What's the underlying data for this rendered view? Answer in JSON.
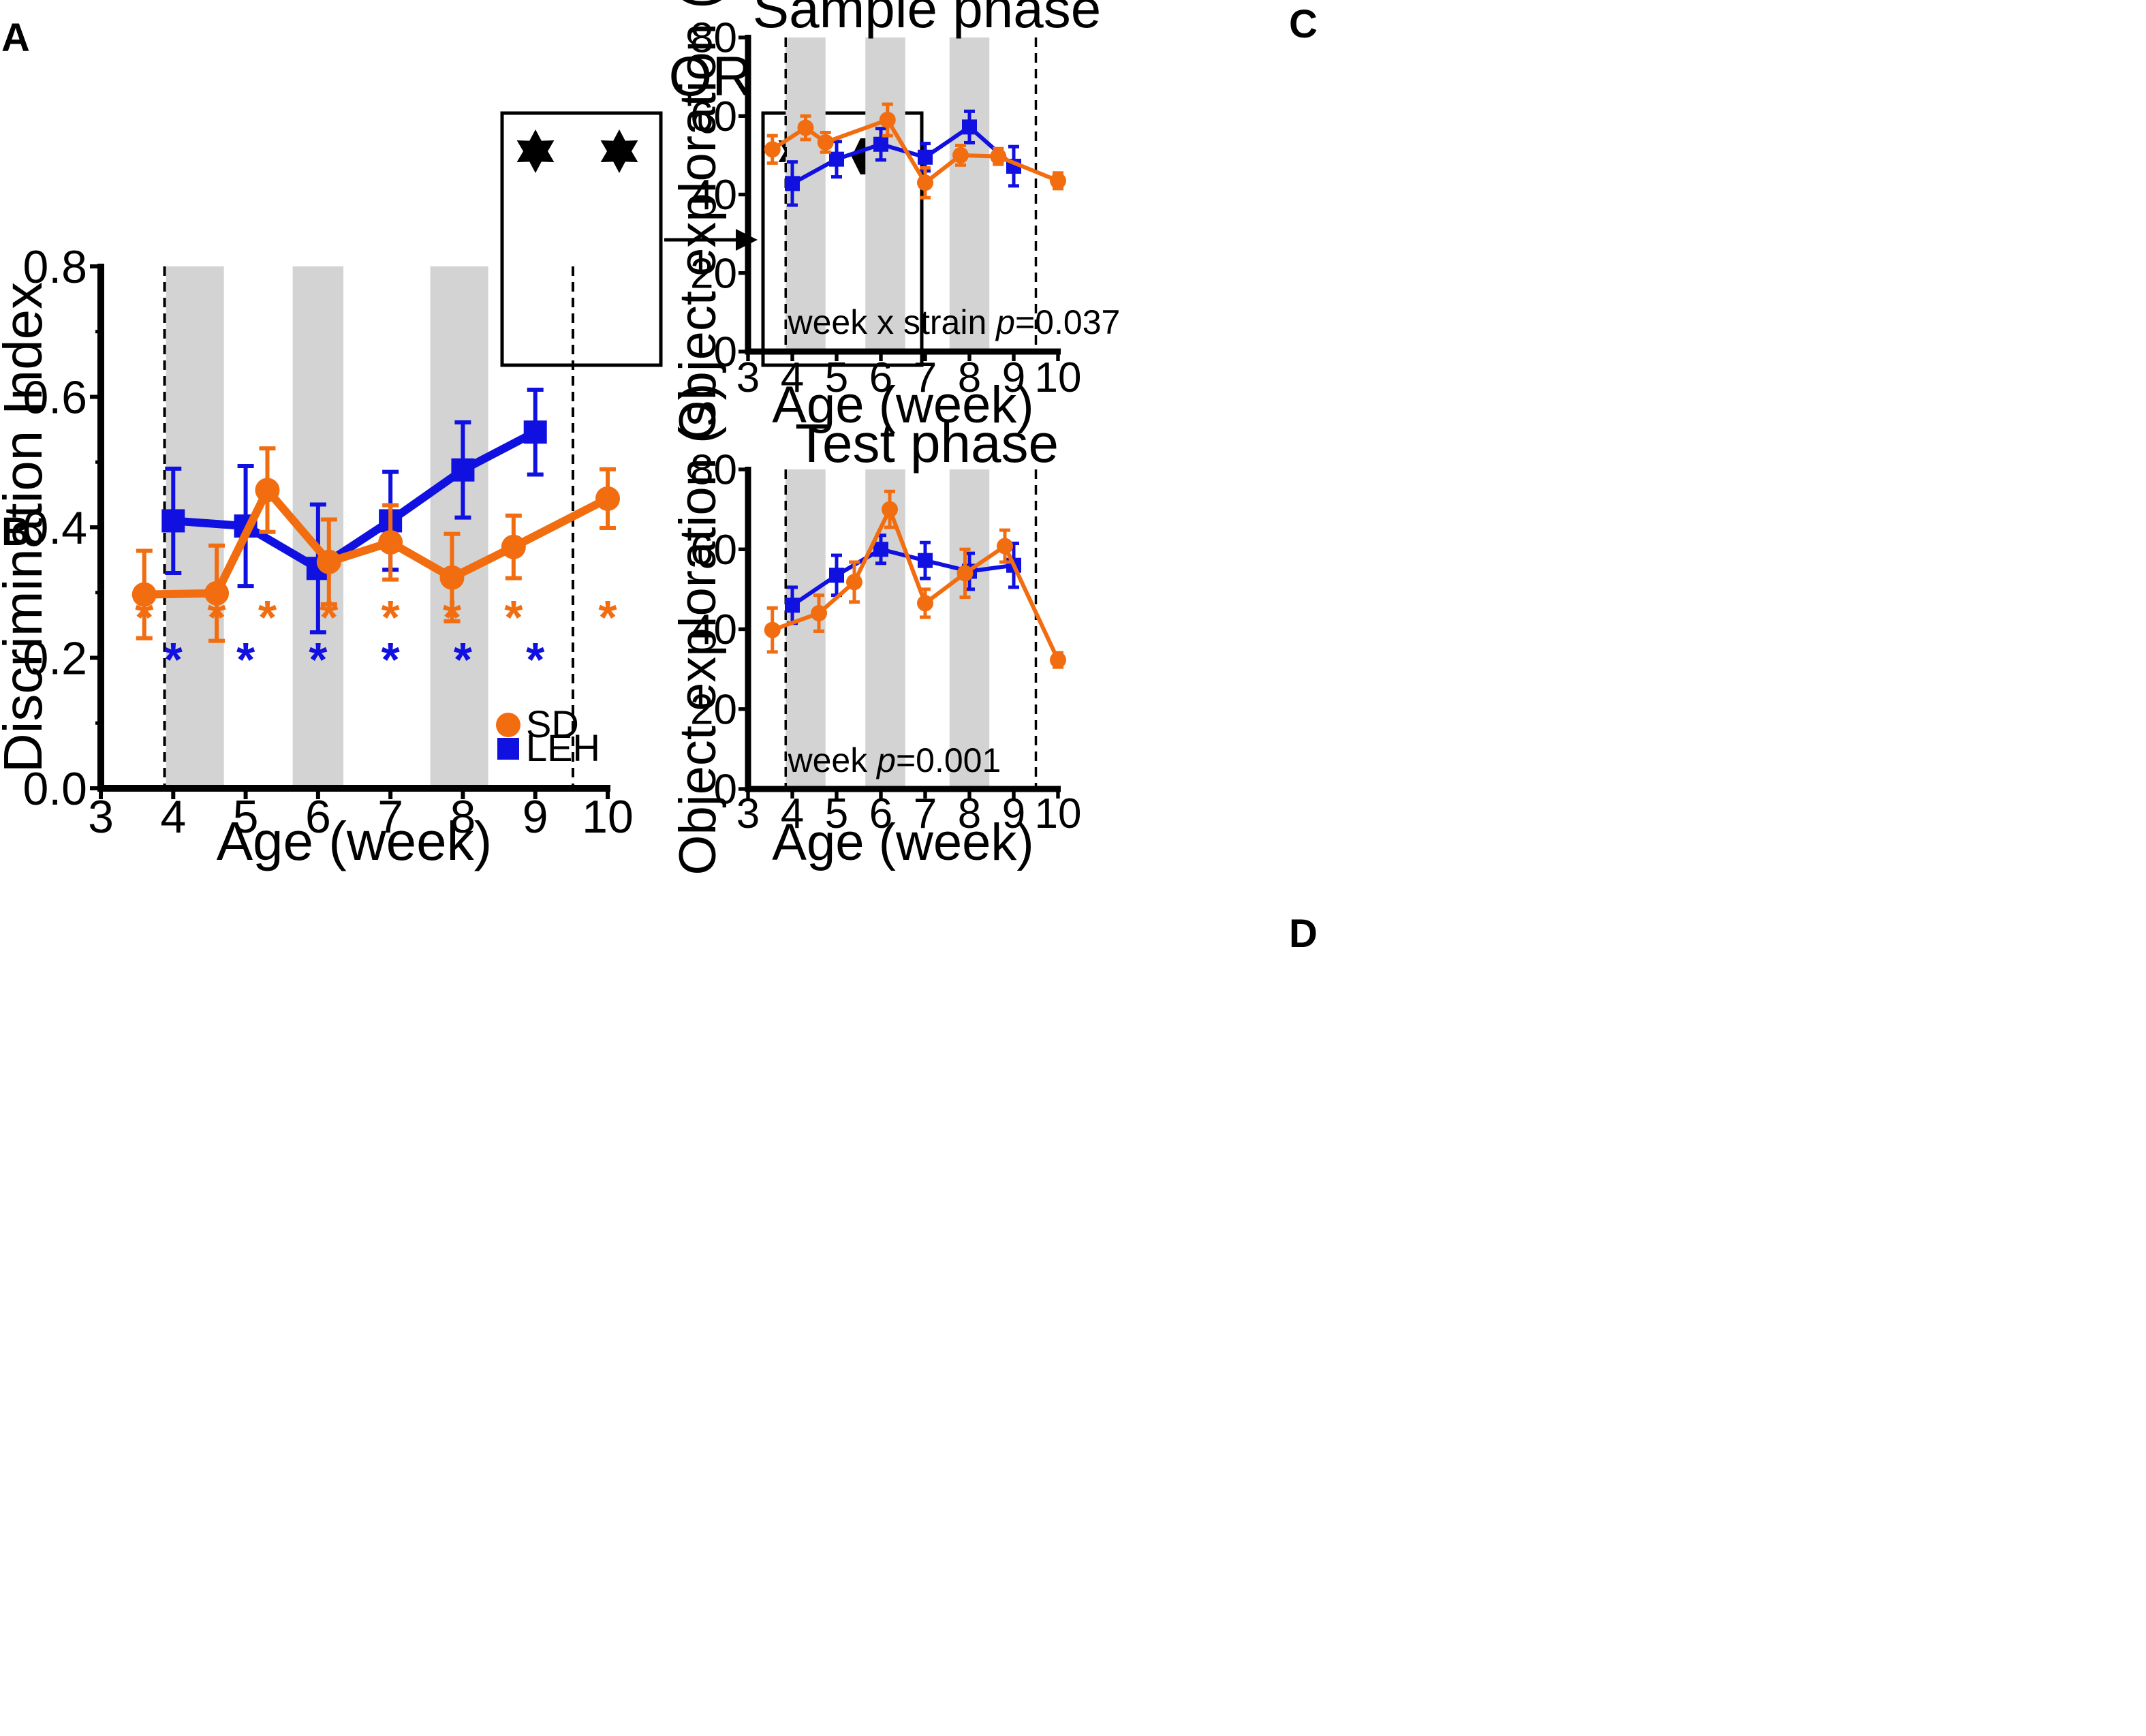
{
  "colors": {
    "sd": "#f26c10",
    "leh": "#1010e0",
    "shade": "#d3d3d3",
    "axis": "#000000"
  },
  "panel_labels": {
    "a": "A",
    "b": "B",
    "c": "C",
    "d": "D"
  },
  "panel_a": {
    "label": "OR"
  },
  "chart_data": [
    {
      "panel": "B",
      "type": "line",
      "title": "",
      "xlabel": "Age (week)",
      "ylabel": "Discrimination Index",
      "xlim": [
        3,
        10
      ],
      "ylim": [
        0,
        0.8
      ],
      "xticks": [
        3,
        4,
        5,
        6,
        7,
        8,
        9,
        10
      ],
      "xtick_labels": [
        "3",
        "4",
        "5",
        "6",
        "7",
        "8",
        "9",
        "10"
      ],
      "yticks": [
        0,
        0.2,
        0.4,
        0.6,
        0.8
      ],
      "ytick_labels": [
        "0.0",
        "0.2",
        "0.4",
        "0.6",
        "0.8"
      ],
      "shaded_x": [
        [
          3.9,
          4.7
        ],
        [
          5.65,
          6.35
        ],
        [
          7.55,
          8.35
        ]
      ],
      "dashed_x": [
        3.88,
        9.52
      ],
      "legend": [
        "SD",
        "LEH"
      ],
      "legend_position": "bottom-right",
      "series": [
        {
          "name": "SD",
          "marker": "circle",
          "x": [
            3.6,
            4.6,
            5.3,
            6.15,
            7.0,
            7.85,
            8.7,
            10.0
          ],
          "y": [
            0.297,
            0.299,
            0.457,
            0.347,
            0.377,
            0.323,
            0.37,
            0.444
          ],
          "err": [
            0.067,
            0.073,
            0.064,
            0.065,
            0.057,
            0.067,
            0.048,
            0.045
          ]
        },
        {
          "name": "LEH",
          "marker": "square",
          "x": [
            4.0,
            5.0,
            6.0,
            7.0,
            8.0,
            9.0
          ],
          "y": [
            0.41,
            0.402,
            0.337,
            0.41,
            0.488,
            0.546
          ],
          "err": [
            0.08,
            0.092,
            0.098,
            0.075,
            0.073,
            0.065
          ]
        }
      ],
      "sig_marks": [
        {
          "series": "SD",
          "x": [
            3.6,
            4.6,
            5.3,
            6.15,
            7.0,
            7.85,
            8.7,
            10.0
          ],
          "label": "*"
        },
        {
          "series": "LEH",
          "x": [
            4.0,
            5.0,
            6.0,
            7.0,
            8.0,
            9.0
          ],
          "label": "*"
        }
      ]
    },
    {
      "panel": "C",
      "type": "line",
      "title": "Sample phase",
      "xlabel": "Age (week)",
      "ylabel": "Object exploration (s)",
      "xlim": [
        3,
        10
      ],
      "ylim": [
        0,
        80
      ],
      "xticks": [
        3,
        4,
        5,
        6,
        7,
        8,
        9,
        10
      ],
      "xtick_labels": [
        "3",
        "4",
        "5",
        "6",
        "7",
        "8",
        "9",
        "10"
      ],
      "yticks": [
        0,
        20,
        40,
        60,
        80
      ],
      "ytick_labels": [
        "0",
        "20",
        "40",
        "60",
        "80"
      ],
      "shaded_x": [
        [
          3.85,
          4.75
        ],
        [
          5.65,
          6.55
        ],
        [
          7.55,
          8.45
        ]
      ],
      "dashed_x": [
        3.85,
        9.5
      ],
      "annotation": {
        "prefix": "week x strain ",
        "italic": "p",
        "suffix": "=0.037"
      },
      "series": [
        {
          "name": "SD",
          "marker": "circle",
          "x": [
            3.55,
            4.3,
            4.75,
            6.15,
            7.0,
            7.8,
            8.65,
            10.0
          ],
          "y": [
            51.5,
            57.0,
            53.3,
            59.0,
            43.0,
            50.0,
            49.7,
            43.5
          ],
          "err": [
            3.5,
            3.0,
            2.5,
            4.0,
            3.8,
            2.5,
            2.0,
            2.0
          ]
        },
        {
          "name": "LEH",
          "marker": "square",
          "x": [
            4.0,
            5.0,
            6.0,
            7.0,
            8.0,
            9.0
          ],
          "y": [
            42.8,
            49.0,
            52.8,
            49.5,
            57.2,
            47.2
          ],
          "err": [
            5.5,
            4.5,
            4.0,
            3.5,
            4.0,
            5.0
          ]
        }
      ]
    },
    {
      "panel": "D",
      "type": "line",
      "title": "Test phase",
      "xlabel": "Age (week)",
      "ylabel": "Object exploration (s)",
      "xlim": [
        3,
        10
      ],
      "ylim": [
        0,
        80
      ],
      "xticks": [
        3,
        4,
        5,
        6,
        7,
        8,
        9,
        10
      ],
      "xtick_labels": [
        "3",
        "4",
        "5",
        "6",
        "7",
        "8",
        "9",
        "10"
      ],
      "yticks": [
        0,
        20,
        40,
        60,
        80
      ],
      "ytick_labels": [
        "0",
        "20",
        "40",
        "60",
        "80"
      ],
      "shaded_x": [
        [
          3.85,
          4.75
        ],
        [
          5.65,
          6.55
        ],
        [
          7.55,
          8.45
        ]
      ],
      "dashed_x": [
        3.85,
        9.5
      ],
      "annotation": {
        "prefix": "week ",
        "italic": "p",
        "suffix": "=0.001"
      },
      "series": [
        {
          "name": "SD",
          "marker": "circle",
          "x": [
            3.55,
            4.6,
            5.4,
            6.2,
            7.0,
            7.9,
            8.8,
            10.0
          ],
          "y": [
            39.8,
            44.0,
            51.8,
            70.0,
            46.5,
            54.0,
            60.8,
            32.3
          ],
          "err": [
            5.5,
            4.5,
            5.0,
            4.5,
            3.5,
            6.0,
            4.0,
            1.8
          ]
        },
        {
          "name": "LEH",
          "marker": "square",
          "x": [
            4.0,
            5.0,
            6.0,
            7.0,
            8.0,
            9.0
          ],
          "y": [
            46.0,
            53.5,
            60.0,
            57.2,
            54.5,
            56.0
          ],
          "err": [
            4.5,
            5.0,
            3.5,
            4.5,
            4.5,
            5.5
          ]
        }
      ]
    }
  ]
}
